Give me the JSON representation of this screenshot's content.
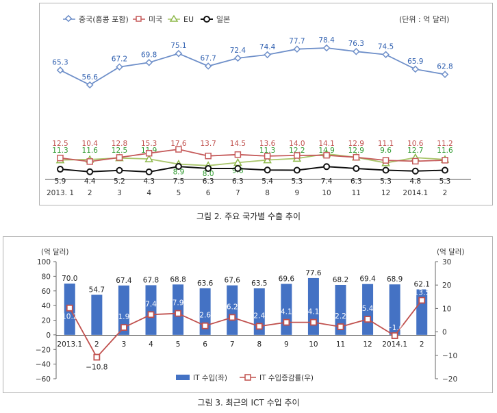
{
  "chart_data": [
    {
      "type": "line",
      "title": "그림 2. 주요 국가별 수출 추이",
      "unit_note": "(단위 : 억 달러)",
      "categories": [
        "2013. 1",
        "2",
        "3",
        "4",
        "5",
        "6",
        "7",
        "8",
        "9",
        "10",
        "11",
        "12",
        "2014.1",
        "2"
      ],
      "grid": false,
      "legend_position": "top-left",
      "series": [
        {
          "name": "중국(홍콩 포함)",
          "color": "#6e8fc9",
          "marker": "diamond",
          "values": [
            65.3,
            56.6,
            67.2,
            69.8,
            75.1,
            67.7,
            72.4,
            74.4,
            77.7,
            78.4,
            76.3,
            74.5,
            65.9,
            62.8
          ],
          "labels": [
            "65.3",
            "56.6",
            "67.2",
            "69.8",
            "75.1",
            "67.7",
            "72.4",
            "74.4",
            "77.7",
            "78.4",
            "76.3",
            "74.5",
            "65.9",
            "62.8"
          ],
          "label_color": "#3060b0",
          "label_position": "above"
        },
        {
          "name": "미국",
          "color": "#c55a5a",
          "marker": "square",
          "values": [
            12.5,
            10.4,
            12.8,
            15.3,
            17.6,
            13.7,
            14.5,
            13.6,
            14.0,
            14.1,
            12.9,
            11.1,
            10.6,
            11.2
          ],
          "labels": [
            "12.5",
            "10.4",
            "12.8",
            "15.3",
            "17.6",
            "13.7",
            "14.5",
            "13.6",
            "14.0",
            "14.1",
            "12.9",
            "11.1",
            "10.6",
            "11.2"
          ],
          "label_color": "#c0504d",
          "label_position": "above"
        },
        {
          "name": "EU",
          "color": "#a8c56a",
          "marker": "triangle",
          "values": [
            11.3,
            11.6,
            12.5,
            11.9,
            8.9,
            8.0,
            9.8,
            11.3,
            12.2,
            14.9,
            12.9,
            9.6,
            12.7,
            11.6
          ],
          "labels": [
            "11.3",
            "11.6",
            "12.5",
            "11.9",
            "8.9",
            "8.0",
            "9.8",
            "11.3",
            "12.2",
            "14.9",
            "12.9",
            "9.6",
            "12.7",
            "11.6"
          ],
          "label_color": "#2e9a2e",
          "label_position": "mixed"
        },
        {
          "name": "일본",
          "color": "#111111",
          "marker": "circle",
          "values": [
            5.9,
            4.4,
            5.2,
            4.3,
            7.5,
            6.3,
            6.3,
            5.4,
            5.3,
            7.4,
            6.3,
            5.3,
            4.8,
            5.3
          ],
          "labels": [
            "5.9",
            "4.4",
            "5.2",
            "4.3",
            "7.5",
            "6.3",
            "6.3",
            "5.4",
            "5.3",
            "7.4",
            "6.3",
            "5.3",
            "4.8",
            "5.3"
          ],
          "label_color": "#222222",
          "label_position": "below"
        }
      ]
    },
    {
      "type": "bar",
      "title": "그림 3. 최근의 ICT 수입 추이",
      "categories": [
        "2013.1",
        "2",
        "3",
        "4",
        "5",
        "6",
        "7",
        "8",
        "9",
        "10",
        "11",
        "12",
        "2014.1",
        "2"
      ],
      "ylabel_left": "(억 달러)",
      "ylabel_right": "(억 달러)",
      "ylim": [
        -60,
        100
      ],
      "yticks": [
        "100",
        "80",
        "60",
        "40",
        "20",
        "0",
        "−20",
        "−40",
        "−60"
      ],
      "y2lim": [
        -20,
        30
      ],
      "y2ticks": [
        "30",
        "20",
        "10",
        "0",
        "−10",
        "−20"
      ],
      "legend_position": "bottom-center",
      "series": [
        {
          "name": "IT 수입(좌)",
          "type": "bar",
          "axis": "left",
          "color": "#4472c4",
          "values": [
            70.0,
            54.7,
            67.4,
            67.8,
            68.8,
            63.6,
            67.6,
            63.5,
            69.6,
            77.6,
            68.2,
            69.4,
            68.9,
            62.1
          ],
          "labels": [
            "70.0",
            "54.7",
            "67.4",
            "67.8",
            "68.8",
            "63.6",
            "67.6",
            "63.5",
            "69.6",
            "77.6",
            "68.2",
            "69.4",
            "68.9",
            "62.1"
          ]
        },
        {
          "name": "IT 수입증감률(우)",
          "type": "line",
          "axis": "right",
          "color": "#c0504d",
          "values": [
            10.2,
            -10.8,
            1.9,
            7.4,
            7.9,
            2.6,
            6.2,
            2.4,
            4.1,
            4.1,
            2.2,
            5.4,
            -1.6,
            13.5
          ],
          "labels": [
            "10.2",
            "−10.8",
            "1.9",
            "7.4",
            "7.9",
            "2.6",
            "6.2",
            "2.4",
            "4.1",
            "4.1",
            "2.2",
            "5.4",
            "−1.6",
            "13.5"
          ]
        }
      ]
    }
  ]
}
